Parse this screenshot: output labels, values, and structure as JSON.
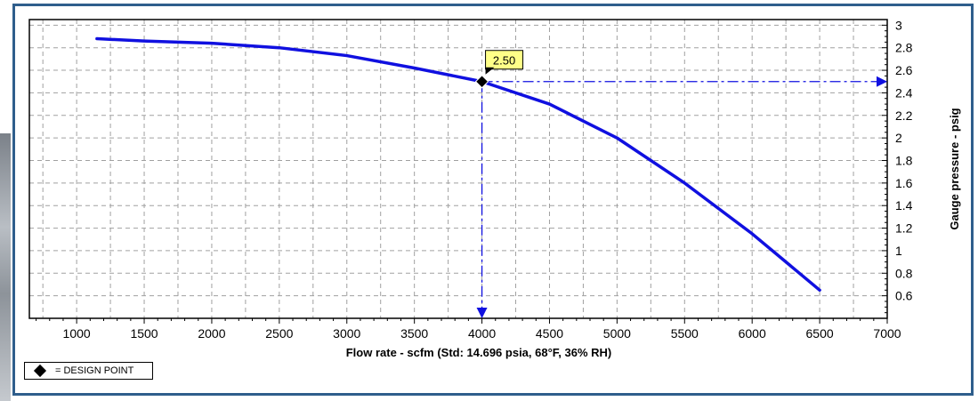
{
  "chart_data": {
    "type": "line",
    "title": "",
    "xlabel": "Flow rate - scfm  (Std: 14.696 psia, 68°F, 36% RH)",
    "ylabel": "Gauge pressure - psig",
    "xlim": [
      650,
      7000
    ],
    "ylim": [
      0.4,
      3.05
    ],
    "x_ticks": [
      1000,
      1500,
      2000,
      2500,
      3000,
      3500,
      4000,
      4500,
      5000,
      5500,
      6000,
      6500,
      7000
    ],
    "y_ticks": [
      0.6,
      0.8,
      1,
      1.2,
      1.4,
      1.6,
      1.8,
      2,
      2.2,
      2.4,
      2.6,
      2.8,
      3
    ],
    "grid": true,
    "series": [
      {
        "x": [
          1150,
          1500,
          2000,
          2500,
          3000,
          3500,
          4000,
          4500,
          5000,
          5500,
          6000,
          6500
        ],
        "y": [
          2.88,
          2.86,
          2.84,
          2.8,
          2.73,
          2.62,
          2.5,
          2.3,
          2.0,
          1.6,
          1.15,
          0.65
        ]
      }
    ],
    "design_point": {
      "x": 4000,
      "y": 2.5,
      "label": "2.50"
    },
    "legend": {
      "symbol": "diamond",
      "label": "= DESIGN POINT",
      "position": "bottom-left"
    },
    "colors": {
      "line": "#1010e0",
      "grid": "#a0a0a0",
      "callout": "#ffff88",
      "frame": "#2f5e8c"
    }
  }
}
